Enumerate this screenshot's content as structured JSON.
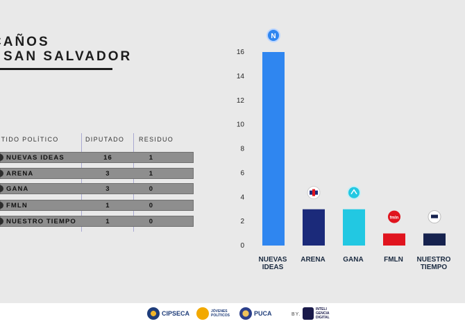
{
  "title": {
    "line1": "CAÑOS",
    "line2": "R SAN SALVADOR"
  },
  "table": {
    "headers": {
      "party": "RTIDO POLÍTICO",
      "seats": "DIPUTADO",
      "residue": "RESIDUO"
    },
    "rows": [
      {
        "party": "NUEVAS IDEAS",
        "seats": "16",
        "residue": "1"
      },
      {
        "party": "ARENA",
        "seats": "3",
        "residue": "1"
      },
      {
        "party": "GANA",
        "seats": "3",
        "residue": "0"
      },
      {
        "party": "FMLN",
        "seats": "1",
        "residue": "0"
      },
      {
        "party": "NUESTRO TIEMPO",
        "seats": "1",
        "residue": "0"
      }
    ]
  },
  "chart_data": {
    "type": "bar",
    "categories": [
      "NUEVAS IDEAS",
      "ARENA",
      "GANA",
      "FMLN",
      "NUESTRO TIEMPO"
    ],
    "values": [
      16,
      3,
      3,
      1,
      1
    ],
    "ylim": [
      0,
      16
    ],
    "yticks": [
      0,
      2,
      4,
      6,
      8,
      10,
      12,
      14,
      16
    ],
    "grid": false,
    "colors": [
      "#2f86f0",
      "#1b2a7a",
      "#22c8e2",
      "#e0141e",
      "#16224e"
    ],
    "icons": [
      "nuevas-ideas-logo-icon",
      "arena-logo-icon",
      "gana-logo-icon",
      "fmln-logo-icon",
      "nuestro-tiempo-logo-icon"
    ],
    "icon_labels": [
      "N",
      "",
      "",
      "fmln",
      ""
    ]
  },
  "footer": {
    "logo1": "CIPSECA",
    "logo2": "JÓVENES POLÍTICOS",
    "logo3": "PUCA",
    "by": "BY.",
    "logo4": "INTELI GENCIA DIGITAL"
  }
}
